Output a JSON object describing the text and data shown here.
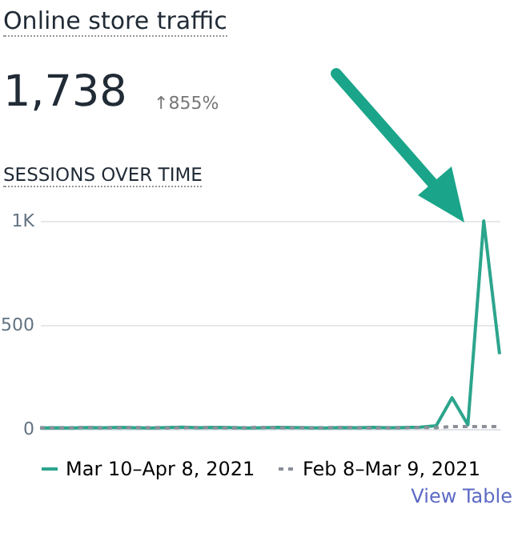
{
  "chart_data": {
    "type": "line",
    "title": "Online store traffic",
    "subtitle": "SESSIONS OVER TIME",
    "annotations": [
      "1,738",
      "↑855%",
      "View Table"
    ],
    "categories": [
      null,
      null,
      null,
      null,
      null,
      null,
      null,
      null,
      null,
      null,
      null,
      null,
      null,
      null,
      null,
      null,
      null,
      null,
      null,
      null,
      null,
      null,
      null,
      null,
      null,
      null,
      null,
      null,
      null,
      null
    ],
    "series": [
      {
        "name": "Mar 10–Apr 8, 2021",
        "color": "#2ca58d",
        "line_style": "solid",
        "values": [
          5,
          6,
          5,
          7,
          6,
          8,
          6,
          5,
          7,
          9,
          6,
          8,
          7,
          5,
          6,
          8,
          7,
          6,
          5,
          7,
          6,
          8,
          6,
          7,
          9,
          15,
          150,
          20,
          1000,
          360
        ]
      },
      {
        "name": "Feb 8–Mar 9, 2021",
        "color": "#8a8f98",
        "line_style": "dashed",
        "values": [
          6,
          5,
          6,
          7,
          5,
          6,
          7,
          6,
          5,
          6,
          7,
          6,
          5,
          6,
          7,
          6,
          6,
          5,
          6,
          7,
          6,
          5,
          6,
          6,
          7,
          6,
          12,
          12,
          12,
          12
        ]
      }
    ],
    "ylim": [
      0,
      1000
    ],
    "yticks": [
      0,
      {
        "value": 500,
        "label": "500"
      },
      {
        "value": 1000,
        "label": "1K"
      }
    ],
    "grid": "y",
    "legend": "bottom",
    "tick_labels": "y",
    "marker": "none"
  }
}
